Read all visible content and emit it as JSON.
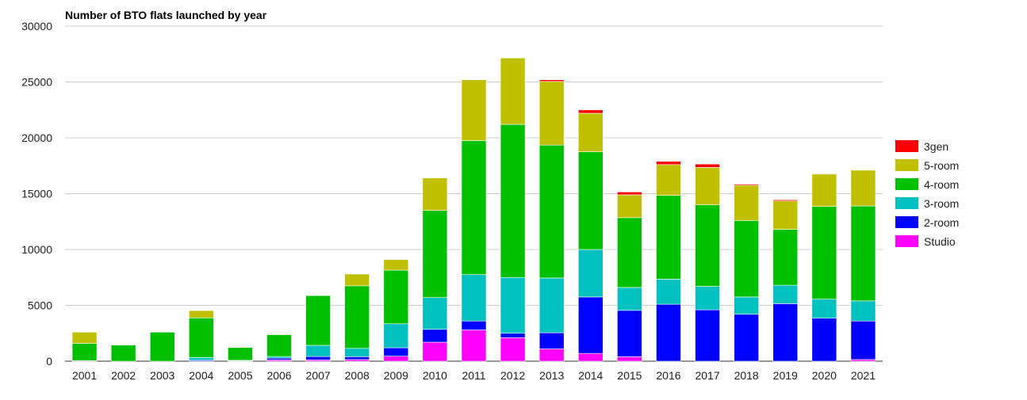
{
  "chart_data": {
    "type": "bar",
    "stacked": true,
    "title": "Number of BTO flats launched by year",
    "xlabel": "",
    "ylabel": "",
    "ylim": [
      0,
      30000
    ],
    "yticks": [
      0,
      5000,
      10000,
      15000,
      20000,
      25000,
      30000
    ],
    "grid": true,
    "legend_position": "right",
    "categories": [
      "2001",
      "2002",
      "2003",
      "2004",
      "2005",
      "2006",
      "2007",
      "2008",
      "2009",
      "2010",
      "2011",
      "2012",
      "2013",
      "2014",
      "2015",
      "2016",
      "2017",
      "2018",
      "2019",
      "2020",
      "2021"
    ],
    "series": [
      {
        "name": "Studio",
        "color": "#ff00ff",
        "values": [
          0,
          0,
          0,
          0,
          0,
          120,
          120,
          150,
          450,
          1700,
          2800,
          2100,
          1100,
          700,
          400,
          0,
          0,
          0,
          0,
          0,
          150
        ]
      },
      {
        "name": "2-room",
        "color": "#0000ff",
        "values": [
          0,
          0,
          0,
          80,
          30,
          150,
          300,
          250,
          750,
          1150,
          800,
          400,
          1450,
          5050,
          4150,
          5100,
          4600,
          4200,
          5150,
          3850,
          3450
        ]
      },
      {
        "name": "3-room",
        "color": "#00c0c0",
        "values": [
          50,
          0,
          0,
          250,
          50,
          150,
          1000,
          750,
          2150,
          2850,
          4150,
          5000,
          4900,
          4250,
          2050,
          2250,
          2100,
          1550,
          1650,
          1700,
          1800
        ]
      },
      {
        "name": "4-room",
        "color": "#00c000",
        "values": [
          1550,
          1450,
          2600,
          3550,
          1150,
          1950,
          4450,
          5600,
          4800,
          7800,
          12000,
          13700,
          11900,
          8750,
          6250,
          7500,
          7300,
          6850,
          5000,
          8300,
          8500
        ]
      },
      {
        "name": "5-room",
        "color": "#c0c000",
        "values": [
          1000,
          0,
          0,
          650,
          0,
          0,
          0,
          1050,
          950,
          2900,
          5450,
          5950,
          5700,
          3450,
          2050,
          2750,
          3350,
          3150,
          2550,
          2900,
          3200
        ]
      },
      {
        "name": "3gen",
        "color": "#ff0000",
        "values": [
          0,
          0,
          0,
          0,
          0,
          0,
          0,
          0,
          0,
          0,
          0,
          0,
          150,
          300,
          250,
          300,
          300,
          100,
          100,
          50,
          0
        ]
      }
    ],
    "legend_order": [
      "3gen",
      "5-room",
      "4-room",
      "3-room",
      "2-room",
      "Studio"
    ]
  }
}
